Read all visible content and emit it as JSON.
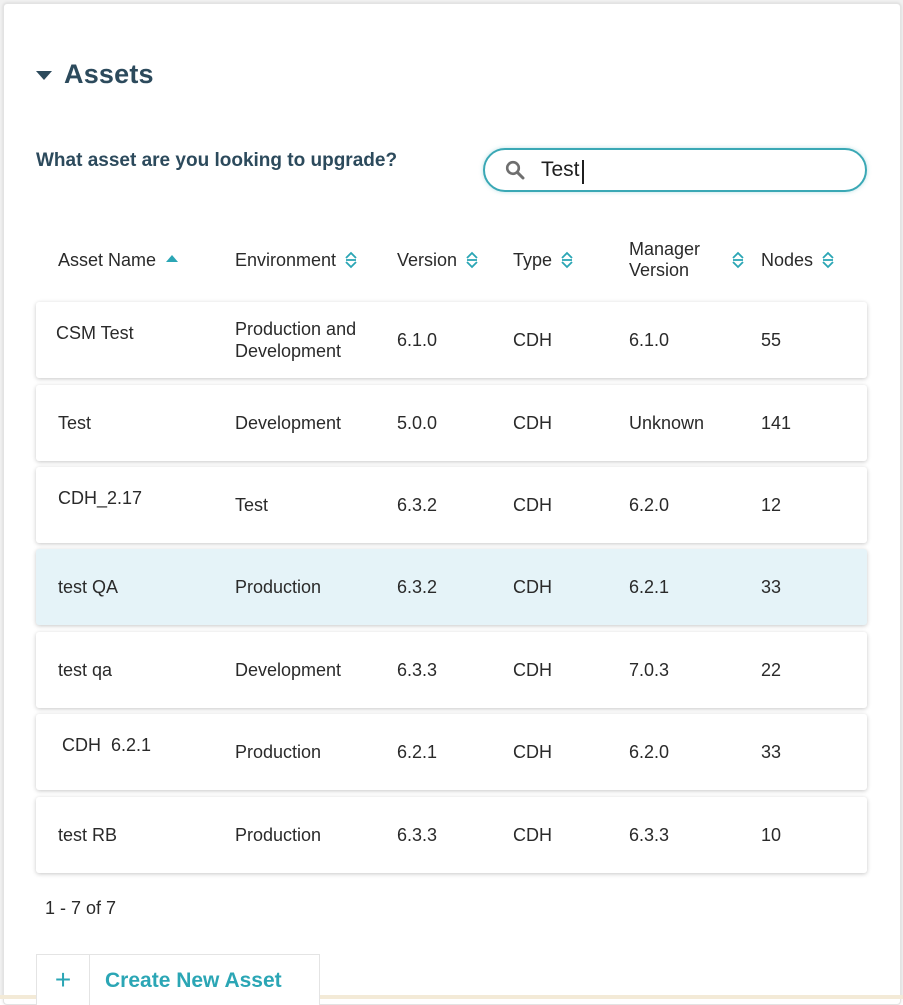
{
  "section": {
    "title": "Assets"
  },
  "search": {
    "question": "What asset are you looking to upgrade?",
    "value": "Test",
    "icon": "search-icon"
  },
  "columns": [
    {
      "label": "Asset Name",
      "sort": "ascending"
    },
    {
      "label": "Environment",
      "sort": "none"
    },
    {
      "label": "Version",
      "sort": "none"
    },
    {
      "label": "Type",
      "sort": "none"
    },
    {
      "label": "Manager Version",
      "sort": "none"
    },
    {
      "label": "Nodes",
      "sort": "none"
    }
  ],
  "rows": [
    {
      "name": "CSM Test",
      "environment": "Production and Development",
      "version": "6.1.0",
      "type": "CDH",
      "manager_version": "6.1.0",
      "nodes": "55",
      "selected": false
    },
    {
      "name": "Test",
      "environment": "Development",
      "version": "5.0.0",
      "type": "CDH",
      "manager_version": "Unknown",
      "nodes": "141",
      "selected": false
    },
    {
      "name": "CDH_2.17",
      "environment": "Test",
      "version": "6.3.2",
      "type": "CDH",
      "manager_version": "6.2.0",
      "nodes": "12",
      "selected": false
    },
    {
      "name": "test QA",
      "environment": "Production",
      "version": "6.3.2",
      "type": "CDH",
      "manager_version": "6.2.1",
      "nodes": "33",
      "selected": true
    },
    {
      "name": "test qa",
      "environment": "Development",
      "version": "6.3.3",
      "type": "CDH",
      "manager_version": "7.0.3",
      "nodes": "22",
      "selected": false
    },
    {
      "name": "CDH  6.2.1",
      "environment": "Production",
      "version": "6.2.1",
      "type": "CDH",
      "manager_version": "6.2.0",
      "nodes": "33",
      "selected": false
    },
    {
      "name": "test RB",
      "environment": "Production",
      "version": "6.3.3",
      "type": "CDH",
      "manager_version": "6.3.3",
      "nodes": "10",
      "selected": false
    }
  ],
  "pagination": {
    "text": "1 - 7 of 7"
  },
  "create": {
    "plus": "+",
    "label": "Create New Asset"
  },
  "colors": {
    "title": "#2c4a5c",
    "accent": "#2ba6b5",
    "selected_row": "#e5f3f8"
  }
}
